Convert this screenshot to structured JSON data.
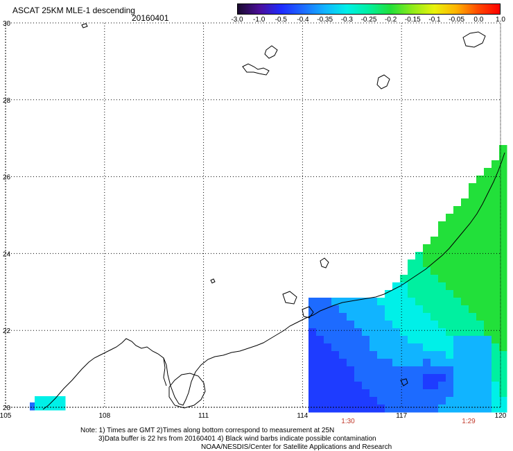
{
  "header": {
    "title": "ASCAT 25KM MLE-1 descending",
    "date": "20160401"
  },
  "colorbar": {
    "labels": [
      "-3.0",
      "-1.0",
      "-0.5",
      "-0.4",
      "-0.35",
      "-0.3",
      "-0.25",
      "-0.2",
      "-0.15",
      "-0.1",
      "-0.05",
      "0.0",
      "1.0"
    ],
    "colors": [
      "#1a0a2e",
      "#4b0f9a",
      "#1e2bff",
      "#1d6bff",
      "#11b4ff",
      "#00f0e8",
      "#00f0a0",
      "#22e03a",
      "#8fec1a",
      "#e9f30c",
      "#ffb400",
      "#ff4a00",
      "#ff0000"
    ]
  },
  "axes": {
    "x_ticks": [
      "105",
      "108",
      "111",
      "114",
      "117",
      "120"
    ],
    "y_ticks": [
      "30",
      "28",
      "26",
      "24",
      "22",
      "20"
    ]
  },
  "time_labels": [
    "1:30",
    "1:29"
  ],
  "notes": {
    "line1": "Note: 1) Times are GMT 2)Times along bottom correspond to measurement at 25N",
    "line2": "3)Data buffer is 22 hrs from 20160401 4) Black wind barbs indicate possible contamination",
    "line3": "NOAA/NESDIS/Center for Satellite Applications and Research"
  }
}
